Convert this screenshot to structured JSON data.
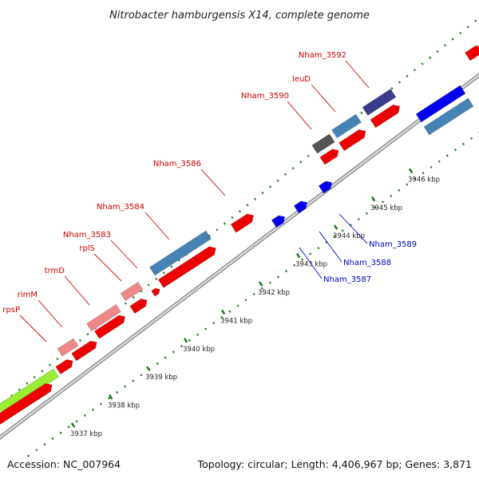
{
  "title": "Nitrobacter hamburgensis X14, complete genome",
  "footer": {
    "accession": "Accession: NC_007964",
    "topology": "Topology: circular; Length: 4,406,967 bp; Genes: 3,871"
  },
  "colors": {
    "backbone": "#9a9a9a",
    "tick": "#1a7a1a",
    "label_forward": "#cc0000",
    "label_reverse": "#0000cc",
    "red": "#ee0000",
    "pink": "#ee8888",
    "steelblue": "#4682b4",
    "navy": "#3c3c8c",
    "gray": "#555555",
    "blue": "#0000ee",
    "lime": "#99ee33"
  },
  "kbp_ticks": [
    {
      "kb": 3937,
      "label": "3937 kbp"
    },
    {
      "kb": 3938,
      "label": "3938 kbp"
    },
    {
      "kb": 3939,
      "label": "3939 kbp"
    },
    {
      "kb": 3940,
      "label": "3940 kbp"
    },
    {
      "kb": 3941,
      "label": "3941 kbp"
    },
    {
      "kb": 3942,
      "label": "3942 kbp"
    },
    {
      "kb": 3943,
      "label": "3943 kbp"
    },
    {
      "kb": 3944,
      "label": "3944 kbp"
    },
    {
      "kb": 3945,
      "label": "3945 kbp"
    },
    {
      "kb": 3946,
      "label": "3946 kbp"
    }
  ],
  "gene_labels_forward": [
    {
      "name": "Nham_3592"
    },
    {
      "name": "leuD"
    },
    {
      "name": "Nham_3590"
    },
    {
      "name": "Nham_3586"
    },
    {
      "name": "Nham_3584"
    },
    {
      "name": "Nham_3583"
    },
    {
      "name": "rplS"
    },
    {
      "name": "trmD"
    },
    {
      "name": "rimM"
    },
    {
      "name": "rpsP"
    }
  ],
  "gene_labels_reverse": [
    {
      "name": "Nham_3589"
    },
    {
      "name": "Nham_3588"
    },
    {
      "name": "Nham_3587"
    }
  ]
}
